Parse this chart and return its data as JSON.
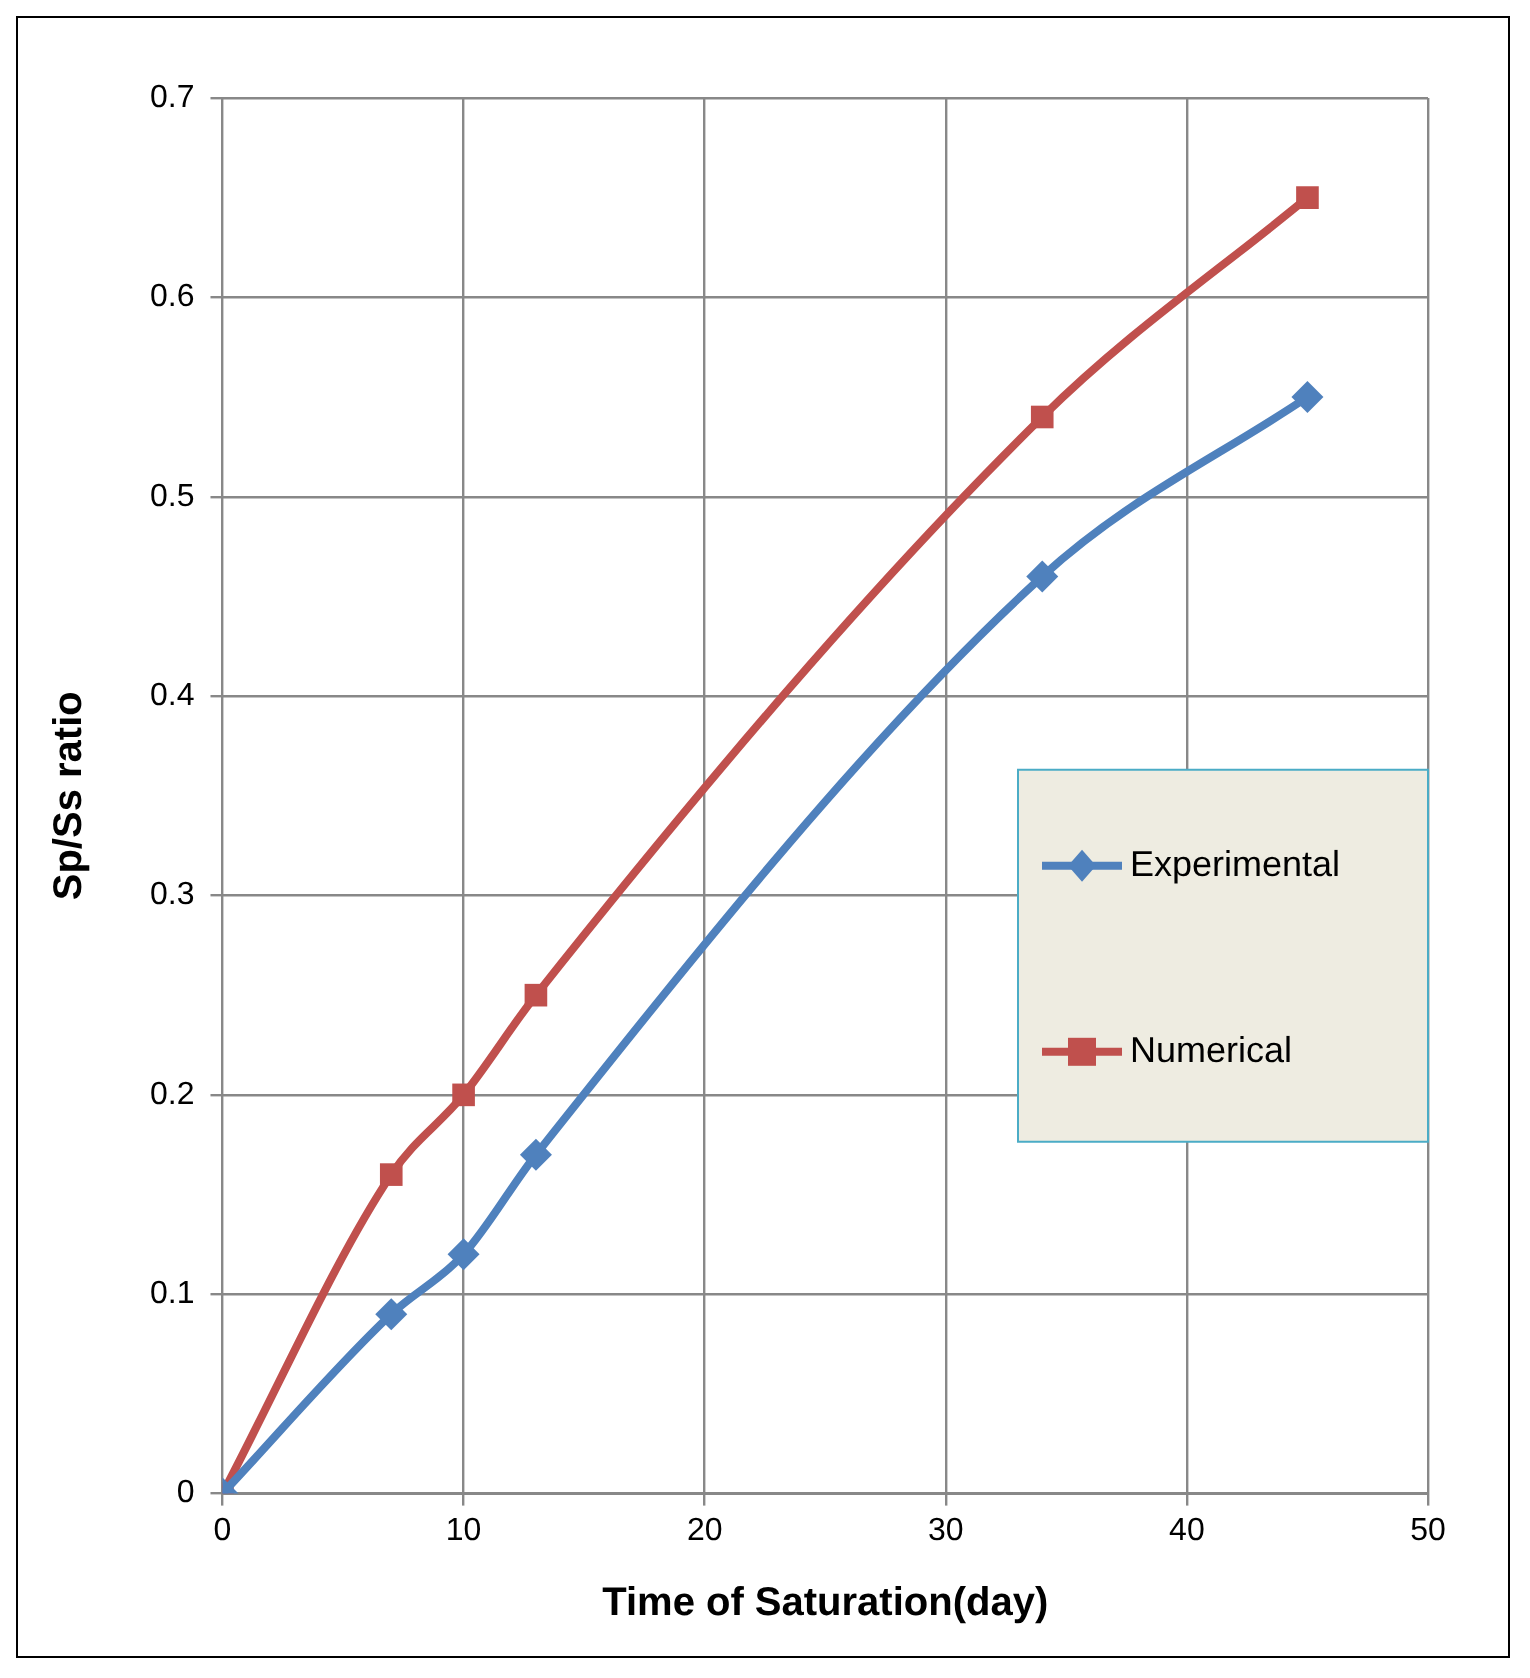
{
  "chart_data": {
    "type": "line",
    "xlabel": "Time of Saturation(day)",
    "ylabel": "Sp/Ss ratio",
    "xlim": [
      0,
      50
    ],
    "xticks": [
      0,
      10,
      20,
      30,
      40,
      50
    ],
    "ylim": [
      0,
      0.7
    ],
    "yticks": [
      0,
      0.1,
      0.2,
      0.3,
      0.4,
      0.5,
      0.6,
      0.7
    ],
    "grid": true,
    "legend": "right",
    "line_style": "solid",
    "series": [
      {
        "name": "Experimental",
        "color": "#4f81bd",
        "marker": "diamond",
        "x": [
          0,
          7,
          10,
          13,
          34,
          45
        ],
        "values": [
          0,
          0.09,
          0.12,
          0.17,
          0.46,
          0.55
        ]
      },
      {
        "name": "Numerical",
        "color": "#c0504d",
        "marker": "square",
        "x": [
          0,
          7,
          10,
          13,
          34,
          45
        ],
        "values": [
          0,
          0.16,
          0.2,
          0.25,
          0.54,
          0.65
        ]
      }
    ]
  }
}
